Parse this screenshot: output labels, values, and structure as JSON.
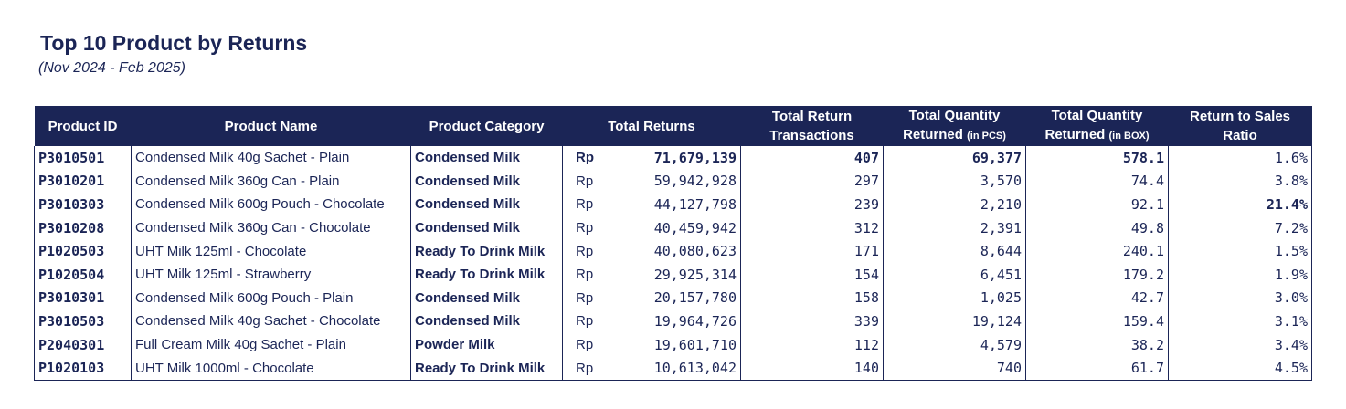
{
  "header": {
    "title": "Top 10 Product by Returns",
    "subtitle": "(Nov 2024 - Feb 2025)"
  },
  "colors": {
    "header_bg": "#1b2556",
    "text": "#1b2556"
  },
  "chart_data": {
    "type": "table",
    "columns": [
      "Product ID",
      "Product Name",
      "Product Category",
      "Total Returns",
      "Total Return Transactions",
      "Total Quantity Returned (in PCS)",
      "Total Quantity Returned (in BOX)",
      "Return to Sales Ratio"
    ],
    "column_labels": {
      "product_id": "Product ID",
      "product_name": "Product Name",
      "product_category": "Product Category",
      "total_returns": "Total Returns",
      "transactions_l1": "Total Return",
      "transactions_l2": "Transactions",
      "qty_pcs_l1": "Total Quantity",
      "qty_pcs_l2": "Returned",
      "qty_pcs_unit": "(in PCS)",
      "qty_box_l1": "Total Quantity",
      "qty_box_l2": "Returned",
      "qty_box_unit": "(in BOX)",
      "ratio_l1": "Return to Sales",
      "ratio_l2": "Ratio"
    },
    "currency": "Rp",
    "rows": [
      {
        "id": "P3010501",
        "name": "Condensed Milk 40g Sachet - Plain",
        "category": "Condensed Milk",
        "returns": "71,679,139",
        "transactions": "407",
        "qty_pcs": "69,377",
        "qty_box": "578.1",
        "ratio": "1.6%"
      },
      {
        "id": "P3010201",
        "name": "Condensed Milk 360g Can - Plain",
        "category": "Condensed Milk",
        "returns": "59,942,928",
        "transactions": "297",
        "qty_pcs": "3,570",
        "qty_box": "74.4",
        "ratio": "3.8%"
      },
      {
        "id": "P3010303",
        "name": "Condensed Milk 600g Pouch - Chocolate",
        "category": "Condensed Milk",
        "returns": "44,127,798",
        "transactions": "239",
        "qty_pcs": "2,210",
        "qty_box": "92.1",
        "ratio": "21.4%"
      },
      {
        "id": "P3010208",
        "name": "Condensed Milk 360g Can - Chocolate",
        "category": "Condensed Milk",
        "returns": "40,459,942",
        "transactions": "312",
        "qty_pcs": "2,391",
        "qty_box": "49.8",
        "ratio": "7.2%"
      },
      {
        "id": "P1020503",
        "name": "UHT Milk 125ml - Chocolate",
        "category": "Ready To Drink Milk",
        "returns": "40,080,623",
        "transactions": "171",
        "qty_pcs": "8,644",
        "qty_box": "240.1",
        "ratio": "1.5%"
      },
      {
        "id": "P1020504",
        "name": "UHT Milk 125ml - Strawberry",
        "category": "Ready To Drink Milk",
        "returns": "29,925,314",
        "transactions": "154",
        "qty_pcs": "6,451",
        "qty_box": "179.2",
        "ratio": "1.9%"
      },
      {
        "id": "P3010301",
        "name": "Condensed Milk 600g Pouch - Plain",
        "category": "Condensed Milk",
        "returns": "20,157,780",
        "transactions": "158",
        "qty_pcs": "1,025",
        "qty_box": "42.7",
        "ratio": "3.0%"
      },
      {
        "id": "P3010503",
        "name": "Condensed Milk 40g Sachet - Chocolate",
        "category": "Condensed Milk",
        "returns": "19,964,726",
        "transactions": "339",
        "qty_pcs": "19,124",
        "qty_box": "159.4",
        "ratio": "3.1%"
      },
      {
        "id": "P2040301",
        "name": "Full Cream Milk 40g Sachet - Plain",
        "category": "Powder Milk",
        "returns": "19,601,710",
        "transactions": "112",
        "qty_pcs": "4,579",
        "qty_box": "38.2",
        "ratio": "3.4%"
      },
      {
        "id": "P1020103",
        "name": "UHT Milk 1000ml - Chocolate",
        "category": "Ready To Drink Milk",
        "returns": "10,613,042",
        "transactions": "140",
        "qty_pcs": "740",
        "qty_box": "61.7",
        "ratio": "4.5%"
      }
    ],
    "highlights": {
      "bold_row": "P3010501",
      "bold_ratio": "21.4%"
    }
  }
}
